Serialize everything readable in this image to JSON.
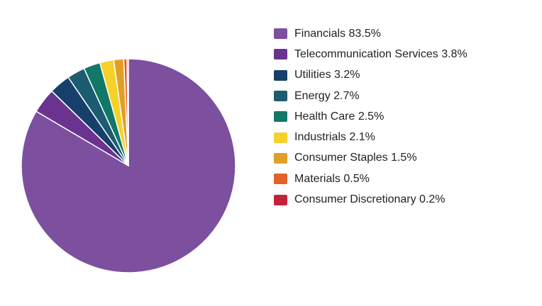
{
  "chart_data": {
    "type": "pie",
    "slices": [
      {
        "label": "Financials",
        "value": 83.5,
        "value_text": "83.5%",
        "color": "#7d4f9f"
      },
      {
        "label": "Telecommunication Services",
        "value": 3.8,
        "value_text": "3.8%",
        "color": "#6a3390"
      },
      {
        "label": "Utilities",
        "value": 3.2,
        "value_text": "3.2%",
        "color": "#163f6b"
      },
      {
        "label": "Energy",
        "value": 2.7,
        "value_text": "2.7%",
        "color": "#1c5c70"
      },
      {
        "label": "Health Care",
        "value": 2.5,
        "value_text": "2.5%",
        "color": "#117766"
      },
      {
        "label": "Industrials",
        "value": 2.1,
        "value_text": "2.1%",
        "color": "#f5d129"
      },
      {
        "label": "Consumer Staples",
        "value": 1.5,
        "value_text": "1.5%",
        "color": "#e0a028"
      },
      {
        "label": "Materials",
        "value": 0.5,
        "value_text": "0.5%",
        "color": "#e2622a"
      },
      {
        "label": "Consumer Discretionary",
        "value": 0.2,
        "value_text": "0.2%",
        "color": "#c4213b"
      }
    ],
    "legend_position": "right",
    "start_angle": "top",
    "direction": "clockwise"
  }
}
